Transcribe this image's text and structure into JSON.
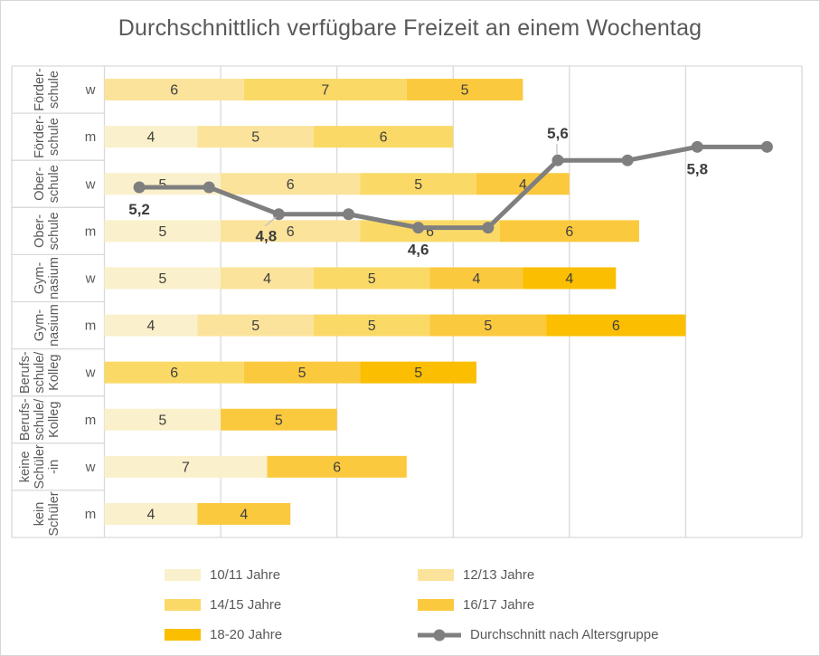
{
  "title": "Durchschnittlich verfügbare Freizeit an einem Wochentag",
  "colors": {
    "age_10_11": "#FAF0CB",
    "age_12_13": "#FBE39B",
    "age_14_15": "#FAD967",
    "age_16_17": "#FBC93E",
    "age_18_20": "#FBBE00",
    "average_line": "#7F7F7F",
    "title_text": "#595959",
    "axis_text": "#595959",
    "bar_label_text": "#404040",
    "line_label_text": "#3d3d3d",
    "gridline": "#D9D9D9",
    "leader_line": "#BFBFBF"
  },
  "legend": {
    "items": [
      {
        "label": "10/11 Jahre",
        "key": "age_10_11",
        "type": "swatch"
      },
      {
        "label": "12/13 Jahre",
        "key": "age_12_13",
        "type": "swatch"
      },
      {
        "label": "14/15 Jahre",
        "key": "age_14_15",
        "type": "swatch"
      },
      {
        "label": "16/17 Jahre",
        "key": "age_16_17",
        "type": "swatch"
      },
      {
        "label": "18-20 Jahre",
        "key": "age_18_20",
        "type": "swatch"
      },
      {
        "label": "Durchschnitt nach Altersgruppe",
        "key": "average_line",
        "type": "line"
      }
    ]
  },
  "chart_data": {
    "type": "bar",
    "subtype": "stacked-horizontal-with-average-line",
    "title": "Durchschnittlich verfügbare Freizeit an einem Wochentag",
    "value_axis": {
      "min": 0,
      "max": 30,
      "gridline_step": 5,
      "tick_labels_visible": false,
      "grid": true
    },
    "series": [
      {
        "name": "10/11 Jahre",
        "color_key": "age_10_11"
      },
      {
        "name": "12/13 Jahre",
        "color_key": "age_12_13"
      },
      {
        "name": "14/15 Jahre",
        "color_key": "age_14_15"
      },
      {
        "name": "16/17 Jahre",
        "color_key": "age_16_17"
      },
      {
        "name": "18-20 Jahre",
        "color_key": "age_18_20"
      }
    ],
    "categories": [
      {
        "school": "Förderschule",
        "school_lines": [
          "Förder-",
          "schule"
        ],
        "gender": "w",
        "segments": [
          {
            "series": "12/13 Jahre",
            "value": 6
          },
          {
            "series": "14/15 Jahre",
            "value": 7
          },
          {
            "series": "16/17 Jahre",
            "value": 5
          }
        ]
      },
      {
        "school": "Förderschule",
        "school_lines": [
          "Förder-",
          "schule"
        ],
        "gender": "m",
        "segments": [
          {
            "series": "10/11 Jahre",
            "value": 4
          },
          {
            "series": "12/13 Jahre",
            "value": 5
          },
          {
            "series": "14/15 Jahre",
            "value": 6
          }
        ]
      },
      {
        "school": "Oberschule",
        "school_lines": [
          "Ober-",
          "schule"
        ],
        "gender": "w",
        "segments": [
          {
            "series": "10/11 Jahre",
            "value": 5
          },
          {
            "series": "12/13 Jahre",
            "value": 6
          },
          {
            "series": "14/15 Jahre",
            "value": 5
          },
          {
            "series": "16/17 Jahre",
            "value": 4
          }
        ]
      },
      {
        "school": "Oberschule",
        "school_lines": [
          "Ober-",
          "schule"
        ],
        "gender": "m",
        "segments": [
          {
            "series": "10/11 Jahre",
            "value": 5
          },
          {
            "series": "12/13 Jahre",
            "value": 6
          },
          {
            "series": "14/15 Jahre",
            "value": 6
          },
          {
            "series": "16/17 Jahre",
            "value": 6
          }
        ]
      },
      {
        "school": "Gymnasium",
        "school_lines": [
          "Gym-",
          "nasium"
        ],
        "gender": "w",
        "segments": [
          {
            "series": "10/11 Jahre",
            "value": 5
          },
          {
            "series": "12/13 Jahre",
            "value": 4
          },
          {
            "series": "14/15 Jahre",
            "value": 5
          },
          {
            "series": "16/17 Jahre",
            "value": 4
          },
          {
            "series": "18-20 Jahre",
            "value": 4
          }
        ]
      },
      {
        "school": "Gymnasium",
        "school_lines": [
          "Gym-",
          "nasium"
        ],
        "gender": "m",
        "segments": [
          {
            "series": "10/11 Jahre",
            "value": 4
          },
          {
            "series": "12/13 Jahre",
            "value": 5
          },
          {
            "series": "14/15 Jahre",
            "value": 5
          },
          {
            "series": "16/17 Jahre",
            "value": 5
          },
          {
            "series": "18-20 Jahre",
            "value": 6
          }
        ]
      },
      {
        "school": "Berufsschule/Kolleg",
        "school_lines": [
          "Berufs-",
          "schule/",
          "Kolleg"
        ],
        "gender": "w",
        "segments": [
          {
            "series": "14/15 Jahre",
            "value": 6
          },
          {
            "series": "16/17 Jahre",
            "value": 5
          },
          {
            "series": "18-20 Jahre",
            "value": 5
          }
        ]
      },
      {
        "school": "Berufsschule/Kolleg",
        "school_lines": [
          "Berufs-",
          "schule/",
          "Kolleg"
        ],
        "gender": "m",
        "segments": [
          {
            "series": "10/11 Jahre",
            "value": 5
          },
          {
            "series": "16/17 Jahre",
            "value": 5
          }
        ]
      },
      {
        "school": "keine Schüler-in",
        "school_lines": [
          "keine",
          "Schüler",
          "-in"
        ],
        "gender": "w",
        "segments": [
          {
            "series": "10/11 Jahre",
            "value": 7
          },
          {
            "series": "16/17 Jahre",
            "value": 6
          }
        ]
      },
      {
        "school": "kein Schüler",
        "school_lines": [
          "kein",
          "Schüler"
        ],
        "gender": "m",
        "segments": [
          {
            "series": "10/11 Jahre",
            "value": 4
          },
          {
            "series": "16/17 Jahre",
            "value": 4
          }
        ]
      }
    ],
    "line": {
      "name": "Durchschnitt nach Altersgruppe",
      "axis_max": 7,
      "values": [
        5.2,
        5.2,
        4.8,
        4.8,
        4.6,
        4.6,
        5.6,
        5.6,
        5.8,
        5.8
      ],
      "labels": [
        {
          "point": 0,
          "text": "5,2",
          "position": "below"
        },
        {
          "point": 2,
          "text": "4,8",
          "position": "below",
          "leader": true,
          "dx": -14
        },
        {
          "point": 4,
          "text": "4,6",
          "position": "below"
        },
        {
          "point": 6,
          "text": "5,6",
          "position": "above",
          "leader": true
        },
        {
          "point": 8,
          "text": "5,8",
          "position": "below"
        }
      ]
    }
  }
}
